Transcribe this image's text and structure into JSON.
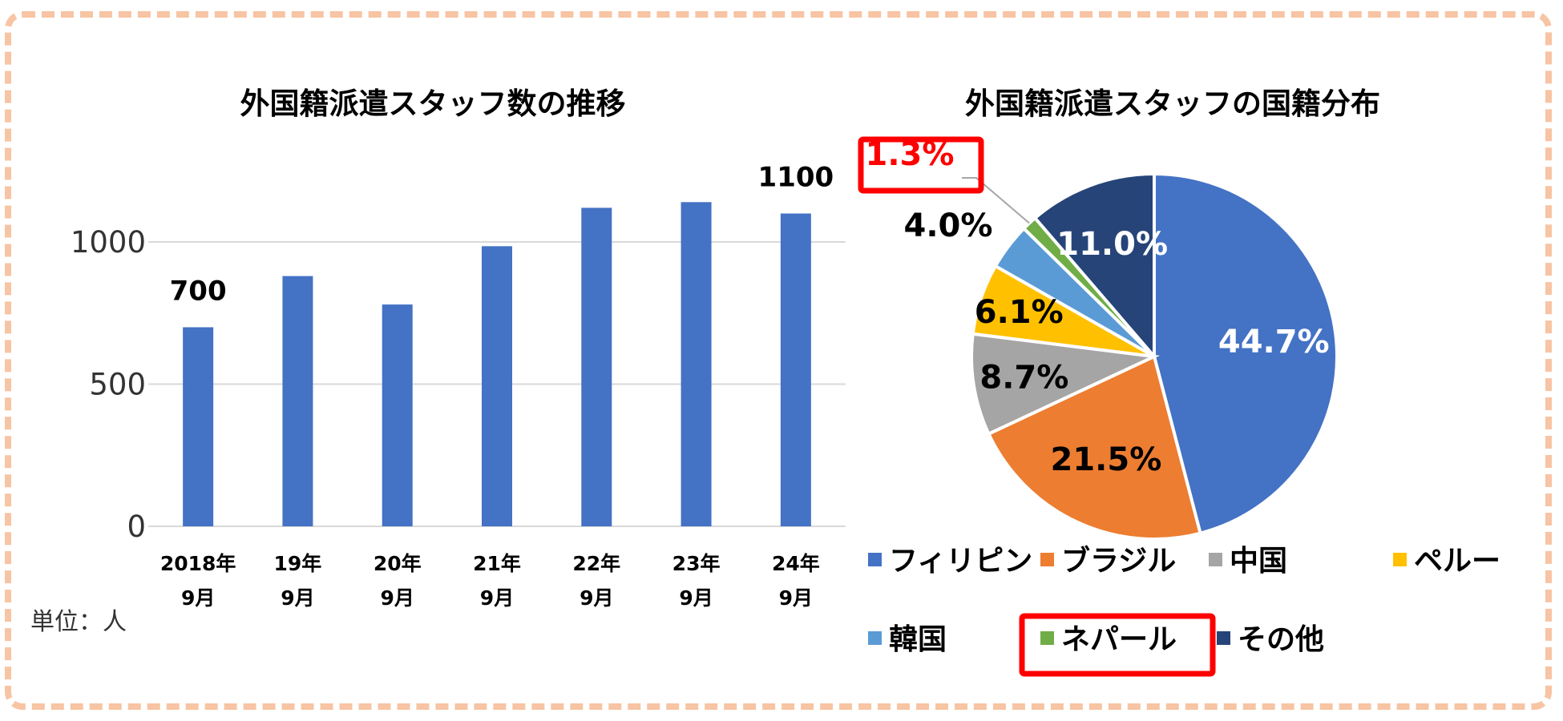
{
  "chart_data": [
    {
      "type": "bar",
      "title": "外国籍派遣スタッフ数の推移",
      "categories": [
        [
          "2018年",
          "9月"
        ],
        [
          "19年",
          "9月"
        ],
        [
          "20年",
          "9月"
        ],
        [
          "21年",
          "9月"
        ],
        [
          "22年",
          "9月"
        ],
        [
          "23年",
          "9月"
        ],
        [
          "24年",
          "9月"
        ]
      ],
      "values": [
        700,
        880,
        780,
        985,
        1120,
        1140,
        1100
      ],
      "data_labels": [
        "700",
        "",
        "",
        "",
        "",
        "",
        "1100"
      ],
      "yticks": [
        0,
        500,
        1000
      ],
      "ylim": [
        0,
        1250
      ],
      "grid": true,
      "unit_note": "単位：人",
      "bar_color": "#4472c4"
    },
    {
      "type": "pie",
      "title": "外国籍派遣スタッフの国籍分布",
      "slices": [
        {
          "name": "フィリピン",
          "value": 44.7,
          "label": "44.7%",
          "color": "#4472c4",
          "label_color": "#ffffff"
        },
        {
          "name": "ブラジル",
          "value": 21.5,
          "label": "21.5%",
          "color": "#ed7d31",
          "label_color": "#000000"
        },
        {
          "name": "中国",
          "value": 8.7,
          "label": "8.7%",
          "color": "#a5a5a5",
          "label_color": "#000000"
        },
        {
          "name": "ペルー",
          "value": 6.1,
          "label": "6.1%",
          "color": "#ffc000",
          "label_color": "#000000"
        },
        {
          "name": "韓国",
          "value": 4.0,
          "label": "4.0%",
          "color": "#5b9bd5",
          "label_color": "#000000"
        },
        {
          "name": "ネパール",
          "value": 1.3,
          "label": "1.3%",
          "color": "#70ad47",
          "label_color": "#ff0000",
          "highlight": true
        },
        {
          "name": "その他",
          "value": 11.0,
          "label": "11.0%",
          "color": "#264478",
          "label_color": "#ffffff"
        }
      ],
      "legend_position": "bottom",
      "highlight_color": "#ff0000"
    }
  ]
}
